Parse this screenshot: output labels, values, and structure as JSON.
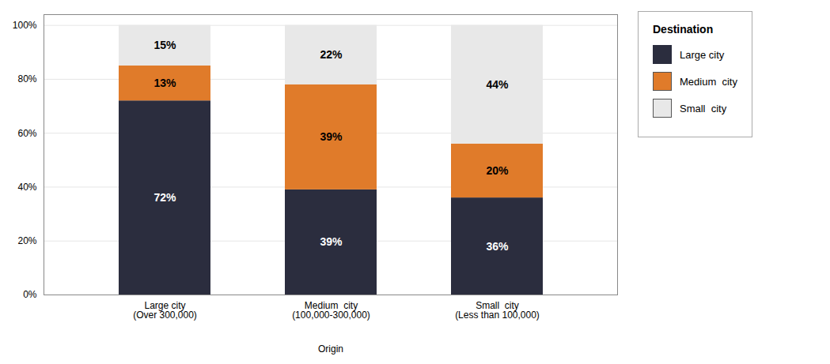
{
  "chart_data": {
    "type": "bar",
    "stacked": true,
    "categories": [
      "Large city\n(Over 300,000)",
      "Medium  city\n(100,000-300,000)",
      "Small  city\n(Less than 100,000)"
    ],
    "series": [
      {
        "name": "Large city",
        "color": "#2b2d3e",
        "values": [
          72,
          39,
          36
        ],
        "value_labels": [
          "72%",
          "39%",
          "36%"
        ]
      },
      {
        "name": "Medium  city",
        "color": "#e07b2a",
        "values": [
          13,
          39,
          20
        ],
        "value_labels": [
          "13%",
          "39%",
          "20%"
        ]
      },
      {
        "name": "Small  city",
        "color": "#e8e8e8",
        "values": [
          15,
          22,
          44
        ],
        "value_labels": [
          "15%",
          "22%",
          "44%"
        ]
      }
    ],
    "xlabel": "Origin",
    "legend_title": "Destination",
    "legend": "upper right",
    "ylim": [
      0,
      104
    ],
    "yticks": [
      {
        "value": 0,
        "label": "0%"
      },
      {
        "value": 20,
        "label": "20%"
      },
      {
        "value": 40,
        "label": "40%"
      },
      {
        "value": 60,
        "label": "60%"
      },
      {
        "value": 80,
        "label": "80%"
      },
      {
        "value": 100,
        "label": "100%"
      }
    ],
    "grid": true,
    "data_labels": true
  }
}
